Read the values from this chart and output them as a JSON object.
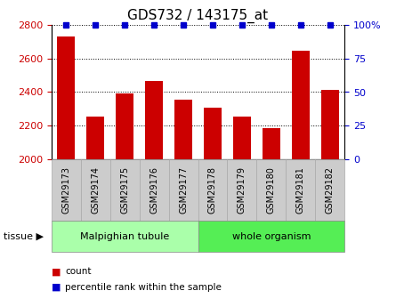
{
  "title": "GDS732 / 143175_at",
  "samples": [
    "GSM29173",
    "GSM29174",
    "GSM29175",
    "GSM29176",
    "GSM29177",
    "GSM29178",
    "GSM29179",
    "GSM29180",
    "GSM29181",
    "GSM29182"
  ],
  "counts": [
    2730,
    2255,
    2390,
    2465,
    2355,
    2310,
    2255,
    2185,
    2645,
    2415
  ],
  "percentiles": [
    100,
    100,
    100,
    100,
    100,
    100,
    100,
    100,
    100,
    100
  ],
  "ylim_left": [
    2000,
    2800
  ],
  "ylim_right": [
    0,
    100
  ],
  "yticks_left": [
    2000,
    2200,
    2400,
    2600,
    2800
  ],
  "yticks_right": [
    0,
    25,
    50,
    75,
    100
  ],
  "bar_color": "#cc0000",
  "marker_color": "#0000cc",
  "tissue_groups": [
    {
      "label": "Malpighian tubule",
      "start": 0,
      "end": 5,
      "color": "#aaffaa"
    },
    {
      "label": "whole organism",
      "start": 5,
      "end": 10,
      "color": "#55ee55"
    }
  ],
  "tissue_label": "tissue",
  "legend_count_label": "count",
  "legend_percentile_label": "percentile rank within the sample",
  "title_fontsize": 11,
  "tick_label_fontsize": 7,
  "axis_tick_fontsize": 8,
  "bar_width": 0.6,
  "background_color": "#ffffff",
  "plot_bg_color": "#ffffff",
  "gray_box_color": "#cccccc",
  "gray_box_edge_color": "#aaaaaa"
}
